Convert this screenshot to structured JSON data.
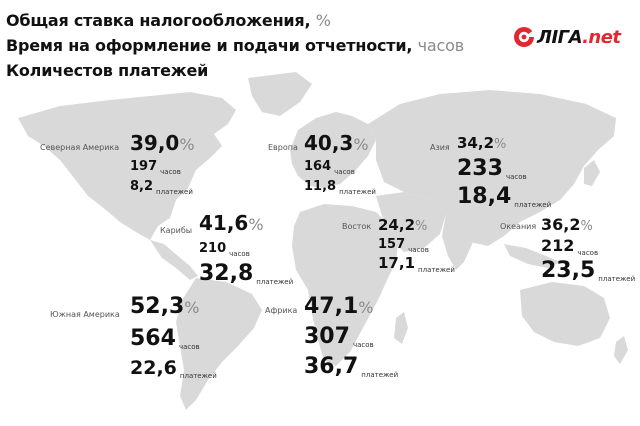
{
  "legend": {
    "line1": {
      "text": "Общая ставка налогообложения,",
      "unit": "%"
    },
    "line2": {
      "text": "Время на оформление и подачи отчетности,",
      "unit": "часов"
    },
    "line3": {
      "text": "Количестов платежей"
    }
  },
  "logo": {
    "brand": "ЛІГА",
    "domain": ".net",
    "colors": {
      "mark": "#e3262f",
      "text": "#111111"
    }
  },
  "map": {
    "land_color": "#d9d9d9",
    "background": "#ffffff"
  },
  "regions": {
    "north_america": {
      "name": "Северная Америка",
      "rate": "39,0",
      "pct_unit": "%",
      "hours": "197",
      "hours_unit": "часов",
      "payments": "8,2",
      "payments_unit": "платежей"
    },
    "caribbean": {
      "name": "Карибы",
      "rate": "41,6",
      "pct_unit": "%",
      "hours": "210",
      "hours_unit": "часов",
      "payments": "32,8",
      "payments_unit": "платежей"
    },
    "south_america": {
      "name": "Южная Америка",
      "rate": "52,3",
      "pct_unit": "%",
      "hours": "564",
      "hours_unit": "часов",
      "payments": "22,6",
      "payments_unit": "платежей"
    },
    "europe": {
      "name": "Европа",
      "rate": "40,3",
      "pct_unit": "%",
      "hours": "164",
      "hours_unit": "часов",
      "payments": "11,8",
      "payments_unit": "платежей"
    },
    "africa": {
      "name": "Африка",
      "rate": "47,1",
      "pct_unit": "%",
      "hours": "307",
      "hours_unit": "часов",
      "payments": "36,7",
      "payments_unit": "платежей"
    },
    "east": {
      "name": "Восток",
      "rate": "24,2",
      "pct_unit": "%",
      "hours": "157",
      "hours_unit": "часов",
      "payments": "17,1",
      "payments_unit": "платежей"
    },
    "asia": {
      "name": "Азия",
      "rate": "34,2",
      "pct_unit": "%",
      "hours": "233",
      "hours_unit": "часов",
      "payments": "18,4",
      "payments_unit": "платежей"
    },
    "oceania": {
      "name": "Океания",
      "rate": "36,2",
      "pct_unit": "%",
      "hours": "212",
      "hours_unit": "часов",
      "payments": "23,5",
      "payments_unit": "платежей"
    }
  }
}
